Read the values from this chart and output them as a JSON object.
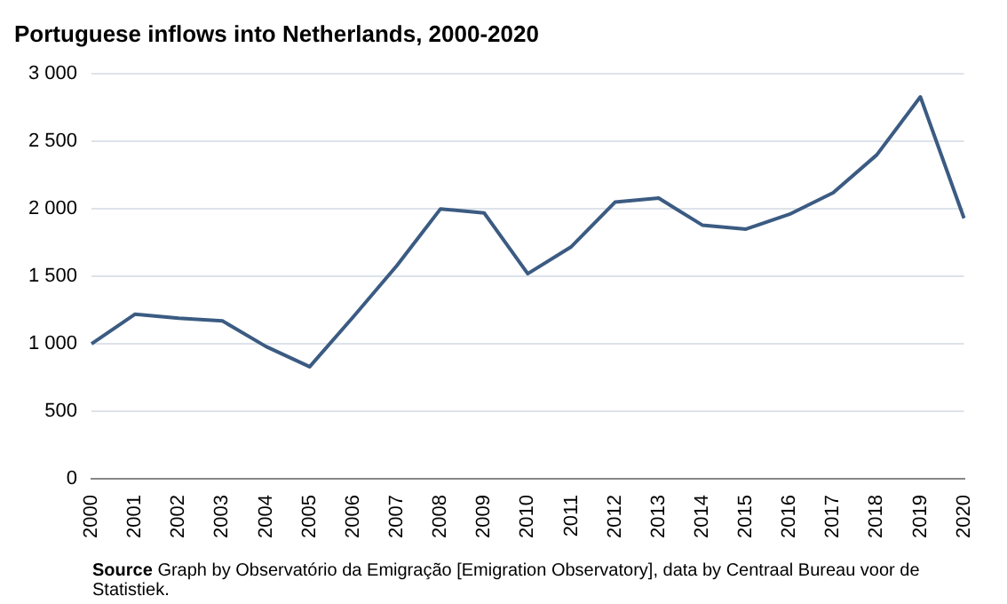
{
  "chart_data": {
    "type": "line",
    "title": "Portuguese inflows into Netherlands, 2000-2020",
    "categories": [
      "2000",
      "2001",
      "2002",
      "2003",
      "2004",
      "2005",
      "2006",
      "2007",
      "2008",
      "2009",
      "2010",
      "2011",
      "2012",
      "2013",
      "2014",
      "2015",
      "2016",
      "2017",
      "2018",
      "2019",
      "2020"
    ],
    "series": [
      {
        "color": "#3b5b82",
        "values": [
          1000,
          1220,
          1190,
          1170,
          980,
          830,
          1200,
          1580,
          2000,
          1970,
          1520,
          1720,
          2050,
          2080,
          1880,
          1850,
          1960,
          2120,
          2400,
          2830,
          1930
        ]
      }
    ],
    "ylim": [
      0,
      3000
    ],
    "yticks": [
      {
        "value": 0,
        "label": "0"
      },
      {
        "value": 500,
        "label": "500"
      },
      {
        "value": 1000,
        "label": "1 000"
      },
      {
        "value": 1500,
        "label": "1 500"
      },
      {
        "value": 2000,
        "label": "2 000"
      },
      {
        "value": 2500,
        "label": "2 500"
      },
      {
        "value": 3000,
        "label": "3 000"
      }
    ],
    "grid": "y",
    "legend": false,
    "marker": "none",
    "line_style": "solid",
    "annotations": [
      "Source",
      "Graph by Observatório da Emigração [Emigration Observatory], data by Centraal Bureau voor de Statistiek."
    ]
  }
}
